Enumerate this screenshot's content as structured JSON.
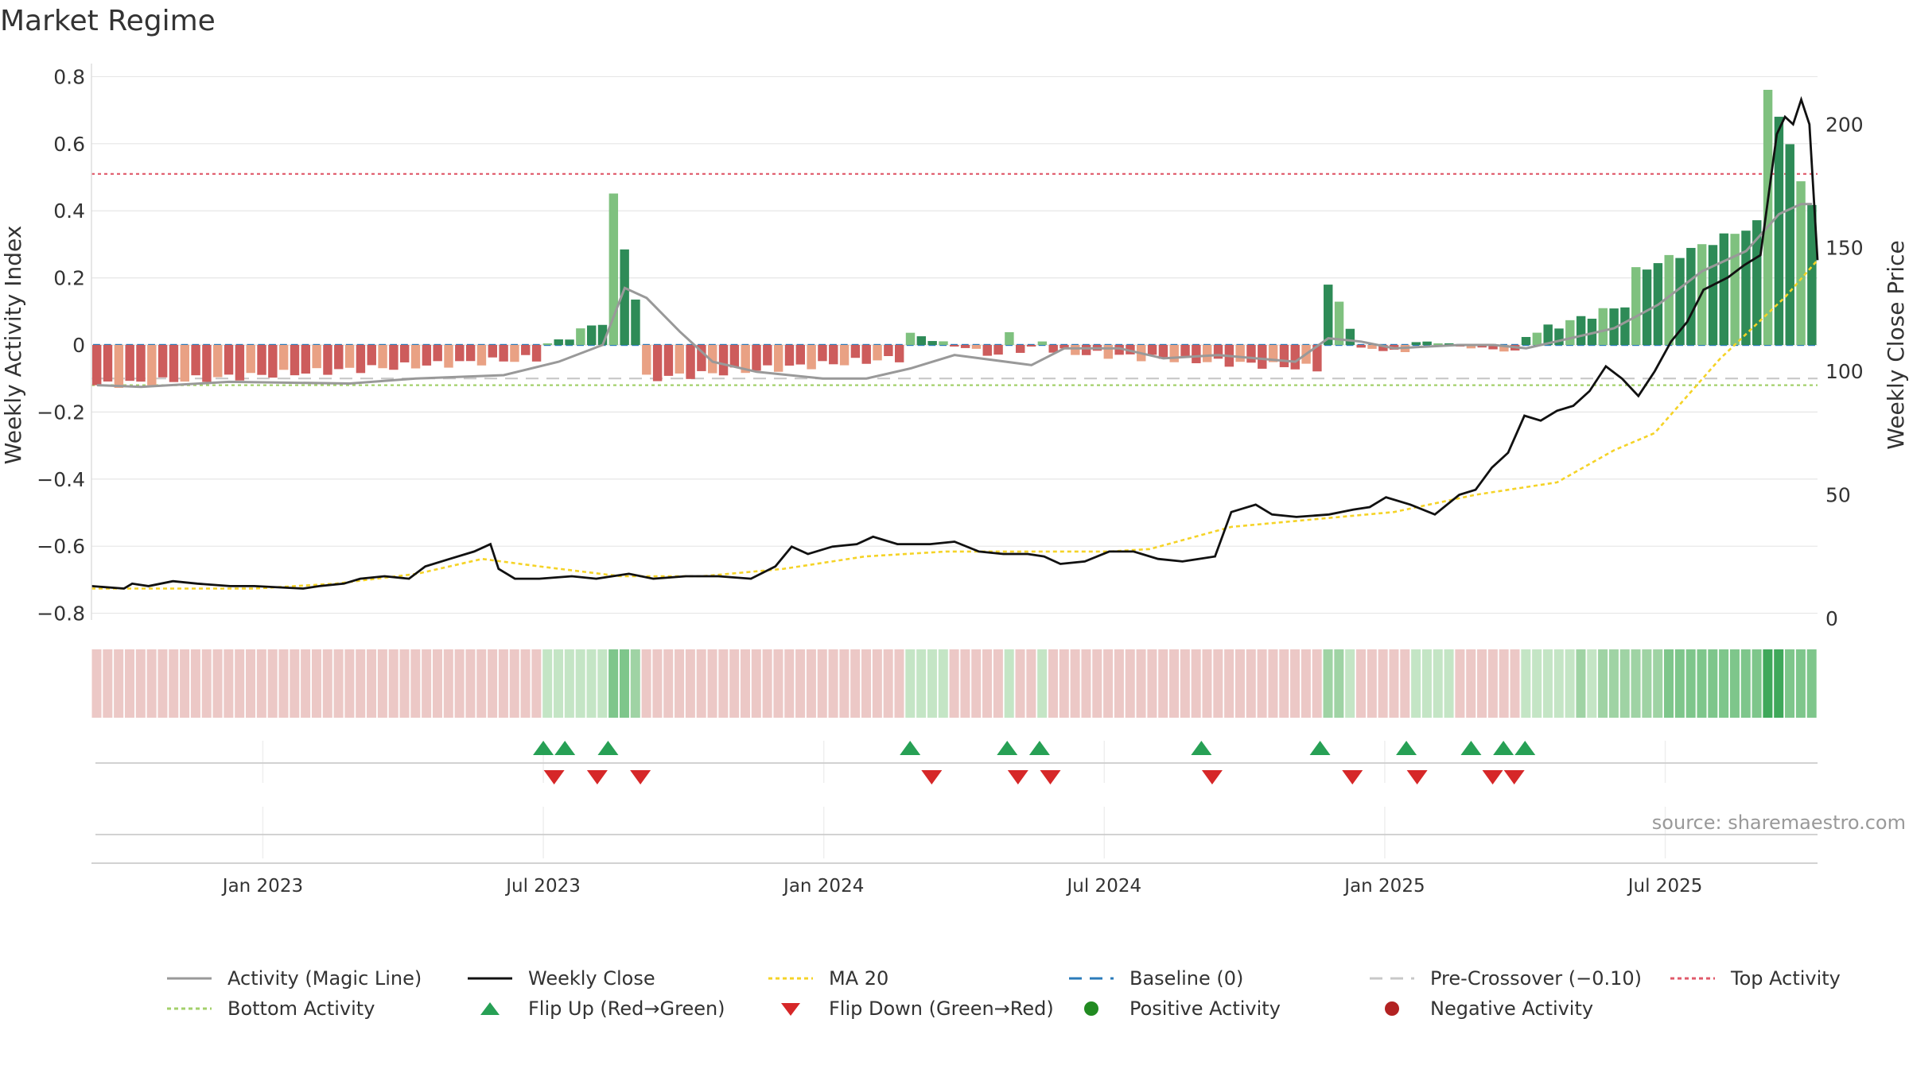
{
  "title": "Market Regime",
  "source": "source: sharemaestro.com",
  "colors": {
    "bull_dark": "#2e8b57",
    "bull_light": "#7fc17f",
    "bear_dark": "#cd5c5c",
    "bear_light": "#e9a184",
    "close": "#111111",
    "ma": "#f5d327",
    "magic": "#999999",
    "baseline": "#2b7bba",
    "pre": "#c8c8c8",
    "top": "#e05a6a",
    "bottom": "#a3d06b",
    "flip_up": "#27a055",
    "flip_down": "#d62728"
  },
  "legend": [
    {
      "label": "Activity (Magic Line)",
      "icon": "solid-gray-line-icon"
    },
    {
      "label": "Weekly Close",
      "icon": "solid-black-line-icon"
    },
    {
      "label": "MA 20",
      "icon": "dotted-yellow-line-icon"
    },
    {
      "label": "Baseline (0)",
      "icon": "dashed-blue-line-icon"
    },
    {
      "label": "Pre-Crossover (−0.10)",
      "icon": "dashed-gray-line-icon"
    },
    {
      "label": "Top Activity",
      "icon": "dotted-red-line-icon"
    },
    {
      "label": "Bottom Activity",
      "icon": "dotted-green-line-icon"
    },
    {
      "label": "Flip Up (Red→Green)",
      "icon": "green-up-triangle-icon"
    },
    {
      "label": "Flip Down (Green→Red)",
      "icon": "red-down-triangle-icon"
    },
    {
      "label": "Positive Activity",
      "icon": "green-dot-icon"
    },
    {
      "label": "Negative Activity",
      "icon": "red-dot-icon"
    }
  ],
  "chart_data": {
    "type": "bar",
    "ylabel": "Weekly Activity Index",
    "y2label": "Weekly Close Price",
    "ylim": [
      -0.82,
      0.82
    ],
    "y2lim": [
      -0.7,
      222
    ],
    "yticks": [
      "−0.8",
      "−0.6",
      "−0.4",
      "−0.2",
      "0",
      "0.2",
      "0.4",
      "0.6",
      "0.8"
    ],
    "y2ticks": [
      "0",
      "50",
      "100",
      "150",
      "200"
    ],
    "xticks": [
      "Jan 2023",
      "Jul 2023",
      "Jan 2024",
      "Jul 2024",
      "Jan 2025",
      "Jul 2025"
    ],
    "xtick_weeks": [
      15,
      41,
      67,
      93,
      119,
      145
    ],
    "grid": true,
    "legend_position": "bottom",
    "reference_lines": {
      "baseline": 0,
      "pre_crossover": -0.1,
      "top_activity": 0.51,
      "bottom_activity": -0.12
    },
    "week_count": 157,
    "activity_segments": [
      [
        0,
        41,
        -0.12,
        -0.04
      ],
      [
        41,
        47,
        0.0,
        0.07
      ],
      [
        47,
        50,
        0.44,
        0.14
      ],
      [
        50,
        74,
        -0.1,
        -0.04
      ],
      [
        74,
        83,
        0.03,
        -0.03
      ],
      [
        83,
        84,
        0.03,
        0.03
      ],
      [
        84,
        87,
        -0.02,
        0.01
      ],
      [
        87,
        112,
        -0.02,
        -0.07
      ],
      [
        112,
        115,
        0.18,
        0.06
      ],
      [
        115,
        120,
        -0.01,
        -0.02
      ],
      [
        120,
        130,
        0.01,
        -0.02
      ],
      [
        130,
        140,
        0.03,
        0.12
      ],
      [
        140,
        152,
        0.22,
        0.36
      ],
      [
        152,
        157,
        0.77,
        0.41
      ]
    ],
    "magic_line": [
      [
        0,
        -0.12
      ],
      [
        4,
        -0.125
      ],
      [
        12,
        -0.11
      ],
      [
        23,
        -0.115
      ],
      [
        29,
        -0.1
      ],
      [
        37,
        -0.09
      ],
      [
        42,
        -0.05
      ],
      [
        46,
        0.0
      ],
      [
        48,
        0.17
      ],
      [
        50,
        0.14
      ],
      [
        53,
        0.04
      ],
      [
        56,
        -0.05
      ],
      [
        60,
        -0.08
      ],
      [
        66,
        -0.1
      ],
      [
        70,
        -0.1
      ],
      [
        74,
        -0.07
      ],
      [
        78,
        -0.03
      ],
      [
        85,
        -0.06
      ],
      [
        88,
        -0.01
      ],
      [
        93,
        -0.01
      ],
      [
        97,
        -0.04
      ],
      [
        102,
        -0.03
      ],
      [
        109,
        -0.05
      ],
      [
        112,
        0.02
      ],
      [
        115,
        0.01
      ],
      [
        118,
        -0.01
      ],
      [
        124,
        0.0
      ],
      [
        127,
        0.0
      ],
      [
        130,
        -0.01
      ],
      [
        134,
        0.02
      ],
      [
        138,
        0.05
      ],
      [
        142,
        0.12
      ],
      [
        146,
        0.22
      ],
      [
        150,
        0.28
      ],
      [
        153,
        0.39
      ],
      [
        155,
        0.42
      ],
      [
        156,
        0.42
      ]
    ],
    "weekly_close": [
      [
        0,
        13
      ],
      [
        4,
        12
      ],
      [
        5,
        14
      ],
      [
        7,
        13
      ],
      [
        10,
        15
      ],
      [
        13,
        14
      ],
      [
        17,
        13
      ],
      [
        20,
        13
      ],
      [
        26,
        12
      ],
      [
        28,
        13
      ],
      [
        31,
        14
      ],
      [
        33,
        16
      ],
      [
        36,
        17
      ],
      [
        39,
        16
      ],
      [
        41,
        21
      ],
      [
        44,
        24
      ],
      [
        47,
        27
      ],
      [
        49,
        30
      ],
      [
        50,
        20
      ],
      [
        52,
        16
      ],
      [
        55,
        16
      ],
      [
        59,
        17
      ],
      [
        62,
        16
      ],
      [
        66,
        18
      ],
      [
        69,
        16
      ],
      [
        73,
        17
      ],
      [
        77,
        17
      ],
      [
        81,
        16
      ],
      [
        84,
        21
      ],
      [
        86,
        29
      ],
      [
        88,
        26
      ],
      [
        91,
        29
      ],
      [
        94,
        30
      ],
      [
        96,
        33
      ],
      [
        99,
        30
      ],
      [
        103,
        30
      ],
      [
        106,
        31
      ],
      [
        109,
        27
      ],
      [
        112,
        26
      ],
      [
        115,
        26
      ],
      [
        117,
        25
      ],
      [
        119,
        22
      ],
      [
        122,
        23
      ],
      [
        125,
        27
      ],
      [
        128,
        27
      ],
      [
        131,
        24
      ],
      [
        134,
        23
      ],
      [
        136,
        24
      ],
      [
        138,
        25
      ],
      [
        140,
        43
      ],
      [
        143,
        46
      ],
      [
        145,
        42
      ],
      [
        148,
        41
      ],
      [
        152,
        42
      ],
      [
        155,
        44
      ],
      [
        157,
        45
      ],
      [
        159,
        49
      ],
      [
        162,
        46
      ],
      [
        165,
        42
      ],
      [
        168,
        50
      ],
      [
        170,
        52
      ],
      [
        172,
        61
      ],
      [
        174,
        67
      ],
      [
        176,
        82
      ],
      [
        178,
        80
      ],
      [
        180,
        84
      ],
      [
        182,
        86
      ],
      [
        184,
        92
      ],
      [
        186,
        102
      ],
      [
        188,
        97
      ],
      [
        190,
        90
      ],
      [
        192,
        100
      ],
      [
        194,
        112
      ],
      [
        196,
        120
      ],
      [
        198,
        133
      ],
      [
        201,
        138
      ],
      [
        203,
        143
      ],
      [
        205,
        147
      ],
      [
        207,
        196
      ],
      [
        208,
        203
      ],
      [
        209,
        200
      ],
      [
        210,
        210
      ],
      [
        211,
        200
      ],
      [
        212,
        145
      ]
    ],
    "ma20": [
      [
        0,
        12
      ],
      [
        10,
        12
      ],
      [
        20,
        12
      ],
      [
        30,
        14
      ],
      [
        40,
        18
      ],
      [
        48,
        24
      ],
      [
        55,
        21
      ],
      [
        65,
        17
      ],
      [
        75,
        17
      ],
      [
        85,
        20
      ],
      [
        95,
        25
      ],
      [
        105,
        27
      ],
      [
        118,
        27
      ],
      [
        125,
        27
      ],
      [
        130,
        28
      ],
      [
        140,
        37
      ],
      [
        150,
        40
      ],
      [
        160,
        43
      ],
      [
        170,
        50
      ],
      [
        180,
        55
      ],
      [
        187,
        68
      ],
      [
        192,
        75
      ],
      [
        200,
        105
      ],
      [
        208,
        130
      ],
      [
        212,
        145
      ]
    ],
    "flip_up_weeks": [
      41,
      43,
      47,
      75,
      84,
      87,
      102,
      113,
      121,
      127,
      130,
      132
    ],
    "flip_down_weeks": [
      42,
      46,
      50,
      77,
      85,
      88,
      103,
      116,
      122,
      129,
      131
    ]
  }
}
